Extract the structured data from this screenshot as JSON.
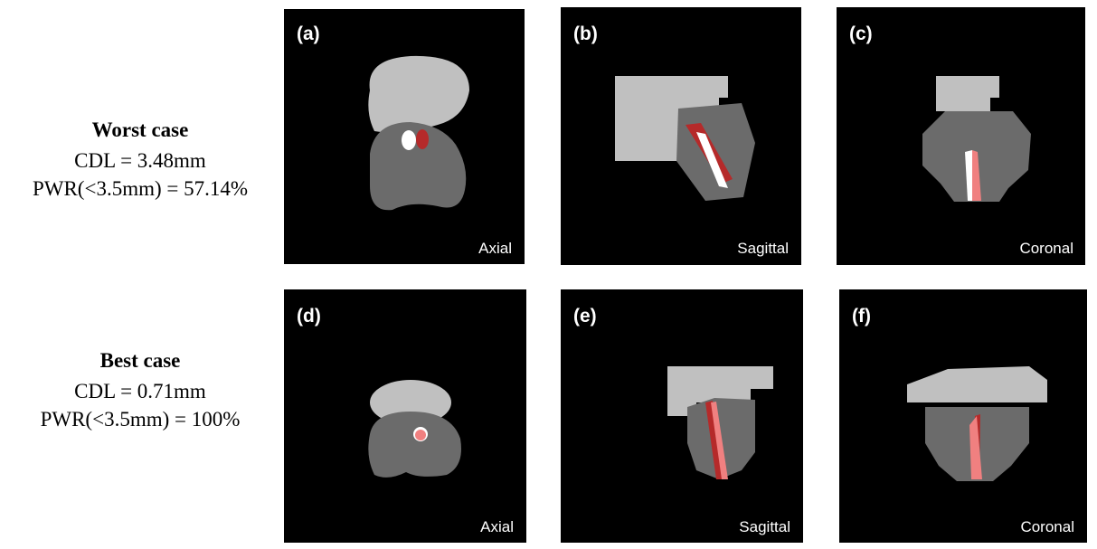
{
  "rows": [
    {
      "title": "Worst case",
      "cdl": "CDL = 3.48mm",
      "pwr": "PWR(<3.5mm) = 57.14%",
      "panels": [
        {
          "letter": "(a)",
          "view": "Axial"
        },
        {
          "letter": "(b)",
          "view": "Sagittal"
        },
        {
          "letter": "(c)",
          "view": "Coronal"
        }
      ]
    },
    {
      "title": "Best case",
      "cdl": "CDL = 0.71mm",
      "pwr": "PWR(<3.5mm) = 100%",
      "panels": [
        {
          "letter": "(d)",
          "view": "Axial"
        },
        {
          "letter": "(e)",
          "view": "Sagittal"
        },
        {
          "letter": "(f)",
          "view": "Coronal"
        }
      ]
    }
  ]
}
